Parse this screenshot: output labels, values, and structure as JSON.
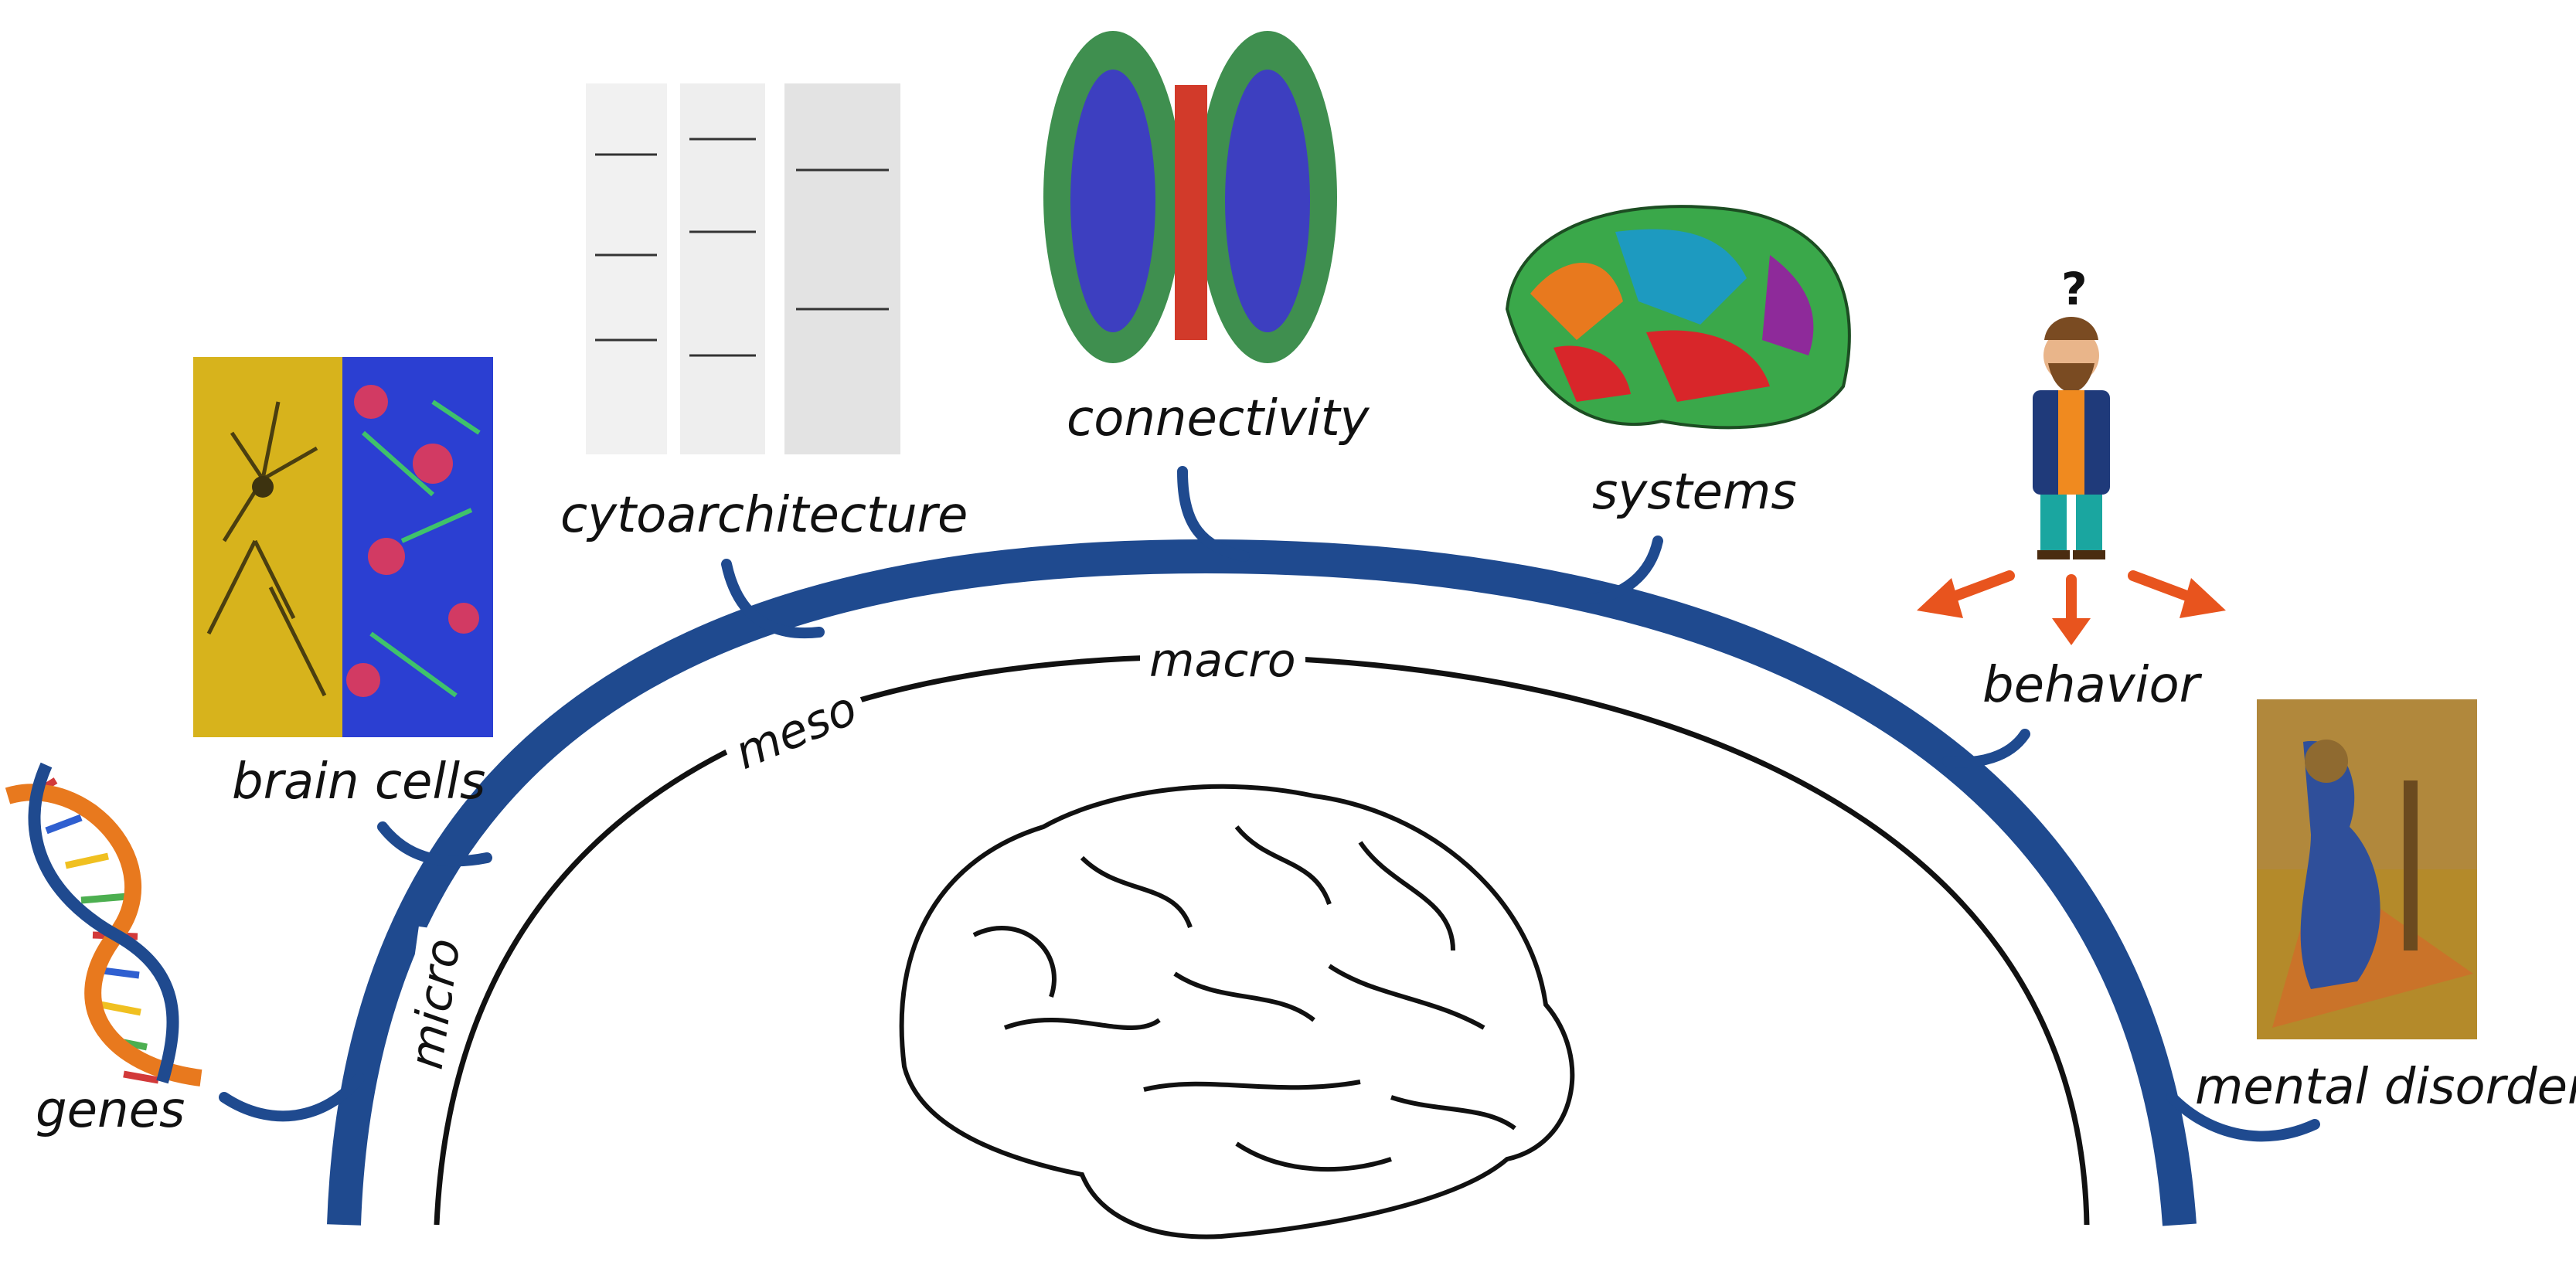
{
  "colors": {
    "arc": "#1f4a8f",
    "arrow": "#e8541e",
    "cell_gold": "#d7b31c",
    "fluor_blue": "#2b3fd2",
    "fluor_red": "#d23a63",
    "fluor_green": "#3fc26b"
  },
  "labels": {
    "genes": "genes",
    "brain_cells": "brain cells",
    "cytoarchitecture": "cytoarchitecture",
    "connectivity": "connectivity",
    "systems": "systems",
    "behavior": "behavior",
    "mental_disorders": "mental disorders"
  },
  "scales": {
    "micro": "micro",
    "meso": "meso",
    "macro": "macro"
  },
  "person": {
    "question_mark": "?"
  },
  "icons": [
    "dna-helix-icon",
    "brain-outline-icon",
    "person-icon",
    "arrow-icon"
  ]
}
